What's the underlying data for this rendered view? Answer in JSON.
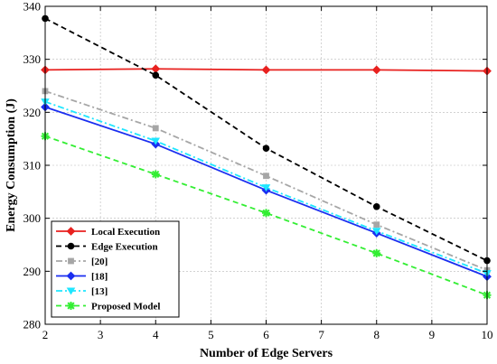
{
  "chart_data": {
    "type": "line",
    "xlabel": "Number of Edge Servers",
    "ylabel": "Energy Consumption (J)",
    "xlim": [
      2,
      10
    ],
    "ylim": [
      280,
      340
    ],
    "xticks": [
      2,
      3,
      4,
      5,
      6,
      7,
      8,
      9,
      10
    ],
    "yticks": [
      280,
      290,
      300,
      310,
      320,
      330,
      340
    ],
    "grid": true,
    "legend_position": "bottom-left",
    "x": [
      2,
      4,
      6,
      8,
      10
    ],
    "series": [
      {
        "name": "Local Execution",
        "values": [
          328.0,
          328.2,
          328.0,
          328.0,
          327.8
        ],
        "color": "#e8211f",
        "dash": "solid",
        "marker": "diamond"
      },
      {
        "name": "Edge Execution",
        "values": [
          337.7,
          327.0,
          313.2,
          302.2,
          292.0
        ],
        "color": "#000000",
        "dash": "dashed",
        "marker": "circle"
      },
      {
        "name": "[20]",
        "values": [
          324.0,
          317.0,
          308.0,
          298.8,
          290.2
        ],
        "color": "#a6a6a6",
        "dash": "dashdot",
        "marker": "square"
      },
      {
        "name": "[18]",
        "values": [
          321.0,
          314.0,
          305.3,
          297.2,
          289.0
        ],
        "color": "#1a2ef0",
        "dash": "solid",
        "marker": "diamond"
      },
      {
        "name": "[13]",
        "values": [
          322.0,
          314.6,
          305.8,
          297.6,
          289.6
        ],
        "color": "#1ee6ff",
        "dash": "dashdot",
        "marker": "triangle-down"
      },
      {
        "name": "Proposed Model",
        "values": [
          315.5,
          308.3,
          301.0,
          293.4,
          285.5
        ],
        "color": "#33ee33",
        "dash": "dashed",
        "marker": "star"
      }
    ]
  }
}
